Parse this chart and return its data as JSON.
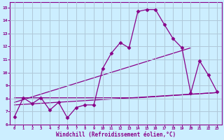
{
  "xlabel": "Windchill (Refroidissement éolien,°C)",
  "bg_color": "#cceeff",
  "grid_color": "#b0c8d8",
  "line_color": "#880088",
  "xlim": [
    -0.5,
    23.5
  ],
  "ylim": [
    6,
    15.4
  ],
  "xticks": [
    0,
    1,
    2,
    3,
    4,
    5,
    6,
    7,
    8,
    9,
    10,
    11,
    12,
    13,
    14,
    15,
    16,
    17,
    18,
    19,
    20,
    21,
    22,
    23
  ],
  "yticks": [
    6,
    7,
    8,
    9,
    10,
    11,
    12,
    13,
    14,
    15
  ],
  "series1_x": [
    0,
    1,
    2,
    3,
    4,
    5,
    6,
    7,
    8,
    9,
    10,
    11,
    12,
    13,
    14,
    15,
    16,
    17,
    18,
    19,
    20,
    21,
    22,
    23
  ],
  "series1_y": [
    6.6,
    8.05,
    7.6,
    8.05,
    7.1,
    7.7,
    6.5,
    7.3,
    7.5,
    7.5,
    10.3,
    11.5,
    12.3,
    11.9,
    14.7,
    14.85,
    14.85,
    13.7,
    12.6,
    11.9,
    8.4,
    10.9,
    9.8,
    8.5
  ],
  "series2_x": [
    0,
    23
  ],
  "series2_y": [
    7.5,
    8.45
  ],
  "series3_x": [
    0,
    20
  ],
  "series3_y": [
    7.7,
    11.9
  ],
  "series4_x": [
    0,
    9,
    14,
    23
  ],
  "series4_y": [
    8.05,
    8.05,
    8.05,
    8.45
  ]
}
